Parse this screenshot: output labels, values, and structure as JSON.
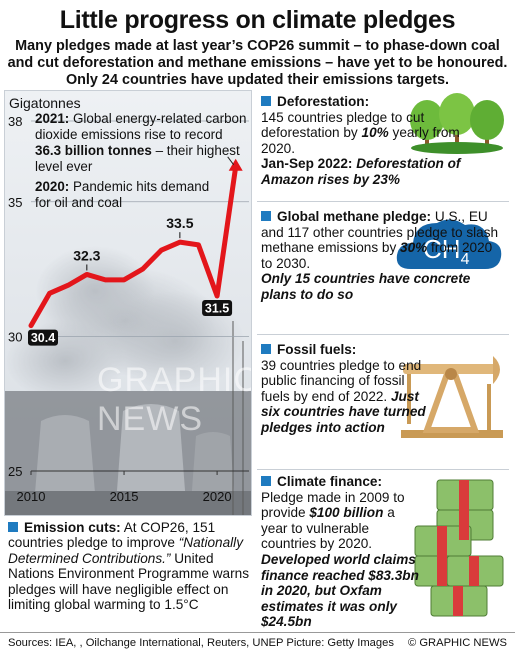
{
  "header": {
    "title": "Little progress on climate pledges",
    "subtitle": "Many pledges made at last year’s COP26 summit – to phase-down coal and cut deforestation and methane emissions – have yet to be honoured. Only 24 countries have updated their emissions targets."
  },
  "chart": {
    "unit_label": "Gigatonnes",
    "note1": {
      "year": "2021:",
      "text_a": "Global energy-related carbon dioxide emissions rise to record",
      "highlight": "36.3 billion tonnes",
      "text_b": "– their highest level ever"
    },
    "note2": {
      "year": "2020:",
      "text": "Pandemic hits demand for oil and coal"
    },
    "watermark": "GRAPHIC NEWS"
  },
  "chart_data": {
    "type": "line",
    "x": [
      2010,
      2011,
      2012,
      2013,
      2014,
      2015,
      2016,
      2017,
      2018,
      2019,
      2020,
      2021
    ],
    "values": [
      30.4,
      31.6,
      31.9,
      32.3,
      32.1,
      32.1,
      32.5,
      33.2,
      33.5,
      33.4,
      31.5,
      36.3
    ],
    "ylim": [
      25,
      38
    ],
    "yticks": [
      "25",
      "30",
      "35",
      "38"
    ],
    "xticks": [
      "2010",
      "2015",
      "2020"
    ],
    "data_labels": [
      {
        "x": 2010,
        "text": "30.4"
      },
      {
        "x": 2013,
        "text": "32.3"
      },
      {
        "x": 2018,
        "text": "33.5"
      },
      {
        "x": 2020,
        "text": "31.5"
      }
    ],
    "line_color": "#e3161b",
    "ylabel": "Gigatonnes"
  },
  "emission": {
    "heading": "Emission cuts:",
    "text_a": "At COP26, 151 countries pledge to improve",
    "quote": "“Nationally Determined Contributions.”",
    "text_b": "United Nations Environment Programme warns pledges will have negligible effect on limiting global warming to 1.5°C"
  },
  "deforestation": {
    "heading": "Deforestation:",
    "text_a": "145 countries pledge to cut deforestation by",
    "pct": "10%",
    "text_b": "yearly from 2020.",
    "highlight": "Jan-Sep 2022:",
    "highlight_b": "Deforestation of Amazon rises by 23%"
  },
  "methane": {
    "heading": "Global methane pledge:",
    "text_a": "U.S., EU and 117 other countries pledge to slash methane emissions by",
    "pct": "30%",
    "text_b": "from 2020 to 2030.",
    "highlight": "Only 15 countries have concrete plans to do so",
    "icon_text": "CH",
    "icon_sub": "4"
  },
  "fossil": {
    "heading": "Fossil fuels:",
    "text_a": "39 countries pledge to end public financing of fossil fuels by end of 2022.",
    "highlight": "Just six countries have turned pledges into action"
  },
  "finance": {
    "heading": "Climate finance:",
    "text_a": "Pledge made in 2009 to provide",
    "amount": "$100 billion",
    "text_b": "a year to vulnerable countries by 2020.",
    "highlight": "Developed world claims finance reached $83.3bn in 2020, but Oxfam estimates it was only $24.5bn"
  },
  "footer": {
    "sources": "Sources: IEA, , Oilchange International, Reuters, UNEP  Picture: Getty Images",
    "credit": "© GRAPHIC NEWS"
  },
  "colors": {
    "accent_blue": "#1f7bc0",
    "line_red": "#e3161b",
    "cloud_blue": "#1565a8",
    "tree_green": "#6dbb3c"
  }
}
